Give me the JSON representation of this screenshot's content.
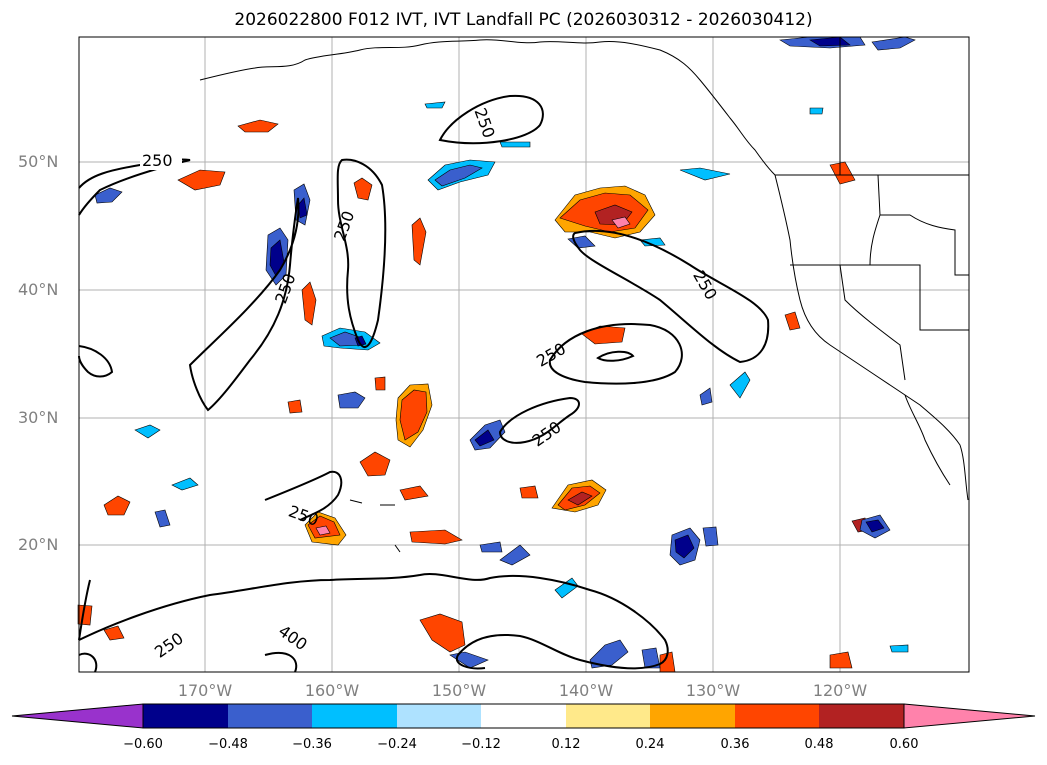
{
  "title": "2026022800 F012 IVT, IVT Landfall PC (2026030312 - 2026030412)",
  "map": {
    "lat_labels": [
      "50°N",
      "40°N",
      "30°N",
      "20°N"
    ],
    "lon_labels": [
      "170°W",
      "160°W",
      "150°W",
      "140°W",
      "130°W",
      "120°W"
    ],
    "contour_labels": [
      "250",
      "250",
      "250",
      "250",
      "250",
      "250",
      "250",
      "250",
      "250",
      "400"
    ]
  },
  "colorbar": {
    "labels": [
      "−0.60",
      "−0.48",
      "−0.36",
      "−0.24",
      "−0.12",
      "0.12",
      "0.24",
      "0.36",
      "0.48",
      "0.60"
    ],
    "colors": [
      "#9932cc",
      "#00008b",
      "#3a5fcd",
      "#00bfff",
      "#aee2ff",
      "#ffffff",
      "#ffe98a",
      "#ffa500",
      "#ff4500",
      "#b22222",
      "#ff82ab"
    ]
  }
}
